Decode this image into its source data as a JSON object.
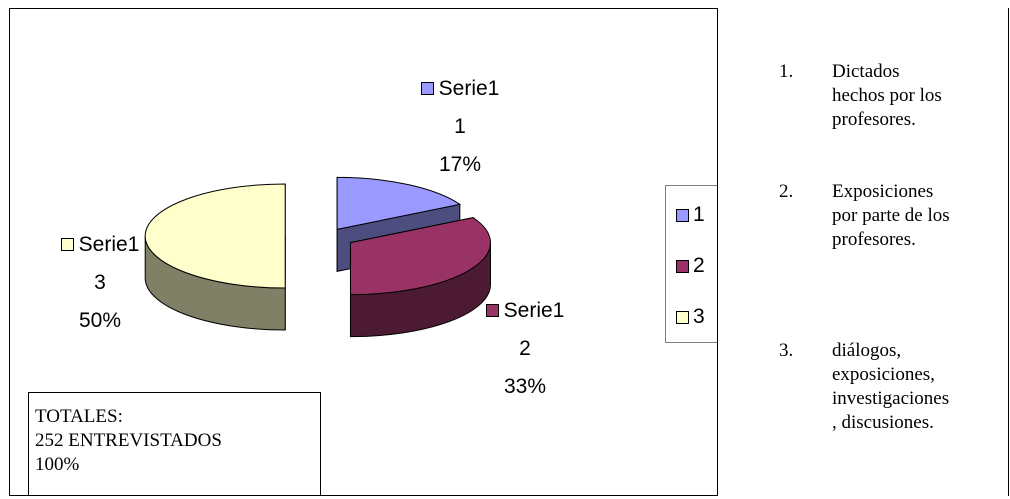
{
  "chart_data": {
    "type": "pie",
    "style": "3d-exploded",
    "title": "",
    "categories": [
      "1",
      "2",
      "3"
    ],
    "values": [
      17,
      33,
      50
    ],
    "unit": "%",
    "series": [
      {
        "name": "Serie1",
        "values": [
          17,
          33,
          50
        ]
      }
    ],
    "data_labels": [
      {
        "series": "Serie1",
        "point": "1",
        "percent": "17%"
      },
      {
        "series": "Serie1",
        "point": "2",
        "percent": "33%"
      },
      {
        "series": "Serie1",
        "point": "3",
        "percent": "50%"
      }
    ],
    "colors": [
      "#9999ff",
      "#993366",
      "#ffffcc"
    ],
    "side_colors": [
      "#4d4d80",
      "#4d1a33",
      "#808066"
    ],
    "legend": {
      "placement": "right",
      "entries": [
        "1",
        "2",
        "3"
      ]
    }
  },
  "totals": {
    "line1": "TOTALES:",
    "line2": "252 ENTREVISTADOS",
    "line3": "100%"
  },
  "notes": [
    {
      "num": "1.",
      "lines": [
        "Dictados",
        "hechos por los",
        "profesores."
      ]
    },
    {
      "num": "2.",
      "lines": [
        "Exposiciones",
        "por parte de los",
        "profesores."
      ]
    },
    {
      "num": "3.",
      "lines": [
        "diálogos,",
        "exposiciones,",
        "investigaciones",
        ", discusiones."
      ]
    }
  ]
}
